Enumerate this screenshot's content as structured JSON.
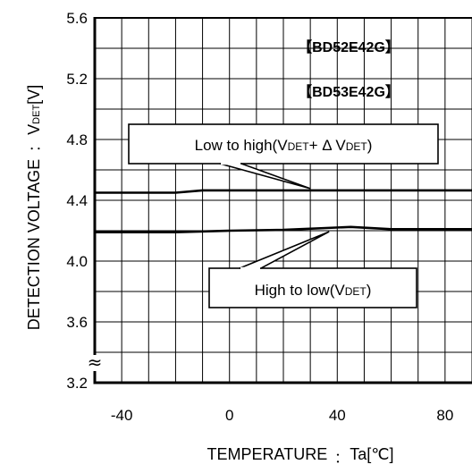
{
  "chart_data": {
    "type": "line",
    "xlabel": "TEMPERATURE",
    "xlabel_sep": "：",
    "xlabel_symbol": "Ta[℃]",
    "ylabel": "DETECTION VOLTAGE",
    "ylabel_sep": "：",
    "ylabel_symbol": "V",
    "ylabel_sub": "DET",
    "ylabel_unit": "[V]",
    "xlim": [
      -50,
      90
    ],
    "ylim": [
      3.2,
      5.6
    ],
    "x_ticks": [
      -40,
      0,
      40,
      80
    ],
    "x_tick_labels": [
      "-40",
      "0",
      "40",
      "80"
    ],
    "y_ticks": [
      3.2,
      3.6,
      4.0,
      4.4,
      4.8,
      5.2,
      5.6
    ],
    "y_tick_labels": [
      "3.2",
      "3.6",
      "4.0",
      "4.4",
      "4.8",
      "5.2",
      "5.6"
    ],
    "axis_break_symbol": "≈",
    "grid": true,
    "part_numbers": [
      "【BD52E42G】",
      "【BD53E42G】"
    ],
    "series": [
      {
        "values": [
          {
            "x": -50,
            "y": 4.45
          },
          {
            "x": -20,
            "y": 4.45
          },
          {
            "x": -10,
            "y": 4.465
          },
          {
            "x": 0,
            "y": 4.465
          },
          {
            "x": 20,
            "y": 4.465
          },
          {
            "x": 40,
            "y": 4.465
          },
          {
            "x": 60,
            "y": 4.465
          },
          {
            "x": 90,
            "y": 4.465
          }
        ]
      },
      {
        "values": [
          {
            "x": -50,
            "y": 4.19
          },
          {
            "x": -20,
            "y": 4.19
          },
          {
            "x": 0,
            "y": 4.2
          },
          {
            "x": 20,
            "y": 4.205
          },
          {
            "x": 45,
            "y": 4.225
          },
          {
            "x": 60,
            "y": 4.21
          },
          {
            "x": 90,
            "y": 4.21
          }
        ]
      }
    ],
    "annotations": [
      {
        "parts": [
          {
            "t": "Low to high(V"
          },
          {
            "t": "DET",
            "sub": true
          },
          {
            "t": "+ Δ V"
          },
          {
            "t": "DET",
            "sub": true
          },
          {
            "t": ")"
          }
        ],
        "point_x": 30,
        "point_y": 4.465
      },
      {
        "parts": [
          {
            "t": "High to low(V"
          },
          {
            "t": "DET",
            "sub": true
          },
          {
            "t": ")"
          }
        ],
        "point_x": 37,
        "point_y": 4.205
      }
    ]
  }
}
